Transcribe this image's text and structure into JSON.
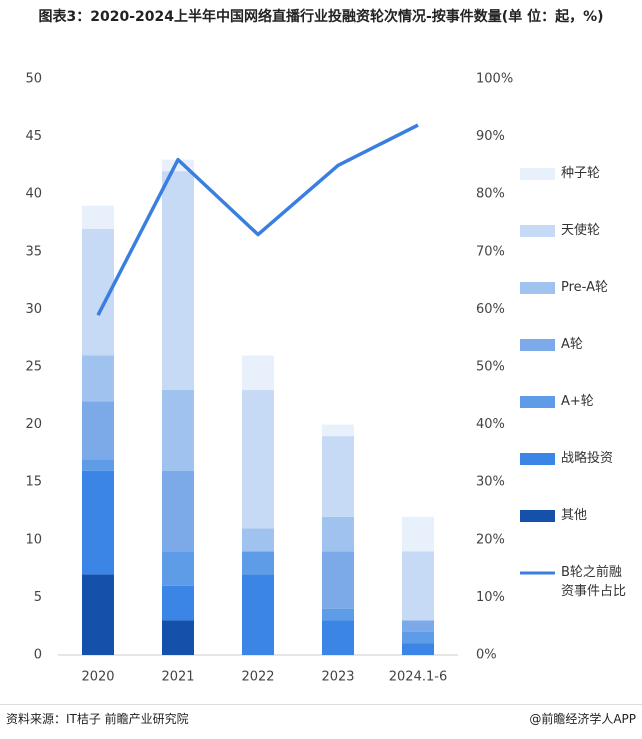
{
  "chart_data": {
    "type": "bar",
    "stacked": true,
    "title": "图表3：2020-2024上半年中国网络直播行业投融资轮次情况-按事件数量(单 位：起，%)",
    "source": "资料来源：IT桔子 前瞻产业研究院",
    "credit": "@前瞻经济学人APP",
    "categories": [
      "2020",
      "2021",
      "2022",
      "2023",
      "2024.1-6"
    ],
    "series": [
      {
        "name": "其他",
        "color": "#1551aa",
        "values": [
          7,
          3,
          0,
          0,
          0
        ]
      },
      {
        "name": "战略投资",
        "color": "#3a85e6",
        "values": [
          9,
          3,
          7,
          3,
          1
        ]
      },
      {
        "name": "A+轮",
        "color": "#5f9ce8",
        "values": [
          1,
          3,
          2,
          1,
          1
        ]
      },
      {
        "name": "A轮",
        "color": "#7caae9",
        "values": [
          5,
          7,
          0,
          5,
          1
        ]
      },
      {
        "name": "Pre-A轮",
        "color": "#9fc2ef",
        "values": [
          4,
          7,
          2,
          3,
          0
        ]
      },
      {
        "name": "天使轮",
        "color": "#c6daf6",
        "values": [
          11,
          19,
          12,
          7,
          6
        ]
      },
      {
        "name": "种子轮",
        "color": "#e8f0fb",
        "values": [
          2,
          1,
          3,
          1,
          3
        ]
      },
      {
        "name": "B轮之前融资事件占比",
        "color": "#3a7fe0",
        "axis": "y2",
        "line": true,
        "values": [
          59,
          86,
          73,
          85,
          92
        ]
      }
    ],
    "ylim": [
      0,
      50
    ],
    "yticks": [
      0,
      5,
      10,
      15,
      20,
      25,
      30,
      35,
      40,
      45,
      50
    ],
    "y2lim": [
      0,
      100
    ],
    "y2ticks": [
      {
        "value": 0,
        "label": "0%"
      },
      {
        "value": 10,
        "label": "10%"
      },
      {
        "value": 20,
        "label": "20%"
      },
      {
        "value": 30,
        "label": "30%"
      },
      {
        "value": 40,
        "label": "40%"
      },
      {
        "value": 50,
        "label": "50%"
      },
      {
        "value": 60,
        "label": "60%"
      },
      {
        "value": 70,
        "label": "70%"
      },
      {
        "value": 80,
        "label": "80%"
      },
      {
        "value": 90,
        "label": "90%"
      },
      {
        "value": 100,
        "label": "100%"
      }
    ],
    "grid": false
  }
}
